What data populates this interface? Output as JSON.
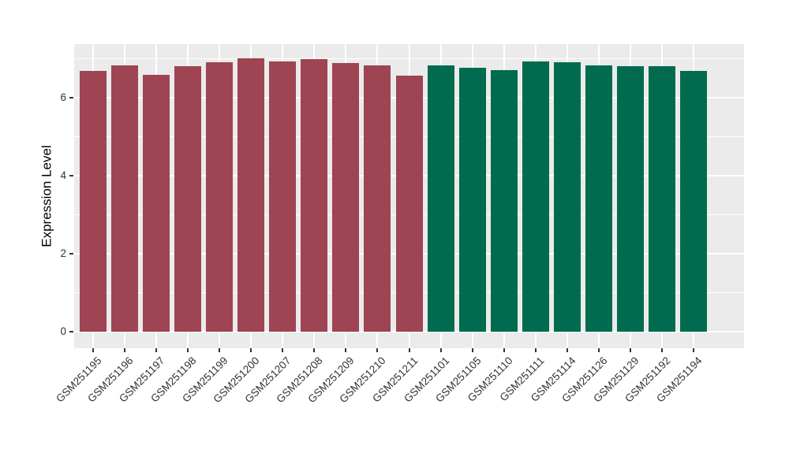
{
  "figure": {
    "background": "#FFFFFF",
    "panel_background": "#EBEBEB",
    "gridline_color": "#FFFFFF",
    "tick_mark_color": "#333333",
    "axis_text_color": "#333333",
    "axis_title_color": "#000000"
  },
  "chart_data": {
    "type": "bar",
    "title": "",
    "xlabel": "",
    "ylabel": "Expression Level",
    "ylim": [
      0,
      7.4
    ],
    "yticks": [
      0,
      2,
      4,
      6
    ],
    "yticks_minor": [
      1,
      3,
      5,
      7
    ],
    "grid": true,
    "legend_position": "none",
    "x_label_angle": 45,
    "categories": [
      "GSM251195",
      "GSM251196",
      "GSM251197",
      "GSM251198",
      "GSM251199",
      "GSM251200",
      "GSM251207",
      "GSM251208",
      "GSM251209",
      "GSM251210",
      "GSM251211",
      "GSM251101",
      "GSM251105",
      "GSM251110",
      "GSM251111",
      "GSM251114",
      "GSM251126",
      "GSM251129",
      "GSM251192",
      "GSM251194"
    ],
    "values": [
      6.68,
      6.83,
      6.59,
      6.8,
      6.9,
      7.02,
      6.92,
      7.0,
      6.89,
      6.82,
      6.57,
      6.83,
      6.77,
      6.7,
      6.93,
      6.9,
      6.83,
      6.81,
      6.8,
      6.68
    ],
    "groups": [
      "group1",
      "group1",
      "group1",
      "group1",
      "group1",
      "group1",
      "group1",
      "group1",
      "group1",
      "group1",
      "group1",
      "group2",
      "group2",
      "group2",
      "group2",
      "group2",
      "group2",
      "group2",
      "group2",
      "group2"
    ],
    "group_colors": {
      "group1": "#9E4452",
      "group2": "#006B4E"
    }
  }
}
